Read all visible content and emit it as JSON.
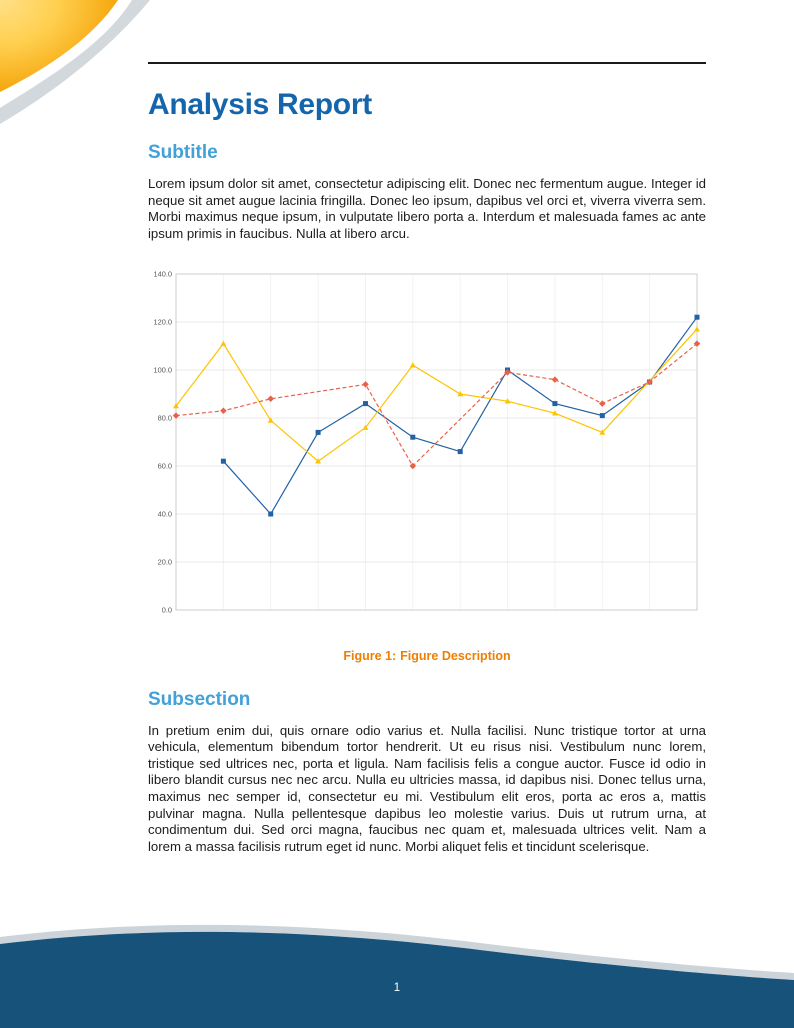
{
  "document": {
    "title": "Analysis Report",
    "sections": [
      {
        "heading": "Subtitle",
        "body": "Lorem ipsum dolor sit amet, consectetur adipiscing elit. Donec nec fermentum augue. Integer id neque sit amet augue lacinia fringilla. Donec leo ipsum, dapibus vel orci et, viverra viverra sem. Morbi maximus neque ipsum, in vulputate libero porta a. Interdum et malesuada fames ac ante ipsum primis in faucibus. Nulla at libero arcu."
      },
      {
        "heading": "Subsection",
        "body": "In pretium enim dui, quis ornare odio varius et. Nulla facilisi. Nunc tristique tortor at urna vehicula, elementum bibendum tortor hendrerit. Ut eu risus nisi. Vestibulum nunc lorem, tristique sed ultrices nec, porta et ligula. Nam facilisis felis a congue auctor. Fusce id odio in libero blandit cursus nec nec arcu. Nulla eu ultricies massa, id dapibus nisi. Donec tellus urna, maximus nec semper id, consectetur eu mi. Vestibulum elit eros, porta ac eros a, mattis pulvinar magna. Nulla pellentesque dapibus leo molestie varius. Duis ut rutrum urna, at condimentum dui. Sed orci magna, faucibus nec quam et, malesuada ultrices velit. Nam a lorem a massa facilisis rutrum eget id nunc. Morbi aliquet felis et tincidunt scelerisque."
      }
    ],
    "figure": {
      "caption_label": "Figure 1:",
      "caption_text": "Figure Description"
    },
    "footer": {
      "page_number": "1"
    }
  },
  "colors": {
    "title_blue": "#1465ac",
    "heading_blue": "#42a1d8",
    "caption_orange": "#ee7f00",
    "footer_navy": "#17527b",
    "corner_yellow": "#ffd24d",
    "corner_orange": "#f39e00",
    "series_blue": "#2161a4",
    "series_yellow": "#fdc400",
    "series_red": "#e8614a"
  },
  "chart_data": {
    "type": "line",
    "title": "",
    "xlabel": "",
    "ylabel": "",
    "x": [
      1,
      2,
      3,
      4,
      5,
      6,
      7,
      8,
      9,
      10,
      11,
      12
    ],
    "ylim": [
      0,
      140
    ],
    "yticks": [
      0,
      20,
      40,
      60,
      80,
      100,
      120,
      140
    ],
    "ytick_labels": [
      "0.0",
      "20.0",
      "40.0",
      "60.0",
      "80.0",
      "100.0",
      "120.0",
      "140.0"
    ],
    "grid": true,
    "legend": "none",
    "series": [
      {
        "name": "blue",
        "color": "#2161a4",
        "line_style": "solid",
        "marker": "square",
        "values": [
          null,
          62,
          40,
          74,
          86,
          72,
          66,
          100,
          86,
          81,
          95,
          122
        ]
      },
      {
        "name": "yellow",
        "color": "#fdc400",
        "line_style": "solid",
        "marker": "triangle",
        "values": [
          85,
          111,
          79,
          62,
          76,
          102,
          90,
          87,
          82,
          74,
          null,
          117
        ]
      },
      {
        "name": "red",
        "color": "#e8614a",
        "line_style": "dashed",
        "marker": "diamond",
        "values": [
          81,
          83,
          88,
          null,
          94,
          60,
          null,
          99,
          96,
          86,
          95,
          111
        ]
      }
    ]
  }
}
